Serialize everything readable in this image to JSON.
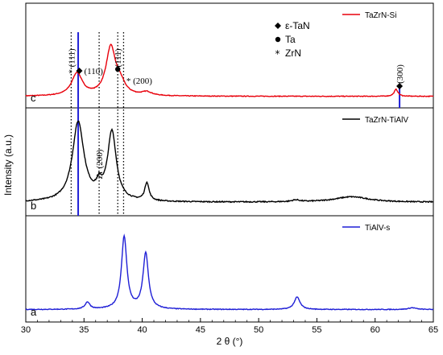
{
  "chart_data": {
    "type": "line",
    "xlabel": "2 θ (°)",
    "ylabel": "Intensity (a.u.)",
    "xlim": [
      30,
      65
    ],
    "xticks": [
      30,
      35,
      40,
      45,
      50,
      55,
      60,
      65
    ],
    "panels": [
      {
        "tag": "c",
        "series": [
          {
            "name": "TaZrN-Si",
            "color": "#e8000b",
            "baseline": 0.04,
            "noise": 0.008,
            "peaks": [
              {
                "x": 34.4,
                "h": 0.26,
                "w": 0.55
              },
              {
                "x": 37.3,
                "h": 0.55,
                "w": 0.5
              },
              {
                "x": 38.1,
                "h": 0.12,
                "w": 0.5
              },
              {
                "x": 40.4,
                "h": 0.04,
                "w": 0.5
              },
              {
                "x": 61.8,
                "h": 0.08,
                "w": 0.2
              }
            ]
          }
        ]
      },
      {
        "tag": "b",
        "series": [
          {
            "name": "TaZrN-TiAlV",
            "color": "#000000",
            "baseline": 0.06,
            "noise": 0.012,
            "peaks": [
              {
                "x": 34.5,
                "h": 0.88,
                "w": 0.6
              },
              {
                "x": 36.3,
                "h": 0.12,
                "w": 0.3
              },
              {
                "x": 37.4,
                "h": 0.76,
                "w": 0.45
              },
              {
                "x": 40.4,
                "h": 0.2,
                "w": 0.22
              },
              {
                "x": 58.0,
                "h": 0.06,
                "w": 1.8
              },
              {
                "x": 53.2,
                "h": 0.02,
                "w": 0.4
              }
            ]
          }
        ]
      },
      {
        "tag": "a",
        "series": [
          {
            "name": "TiAlV-s",
            "color": "#1f1fd6",
            "baseline": 0.05,
            "noise": 0.008,
            "peaks": [
              {
                "x": 35.3,
                "h": 0.08,
                "w": 0.25
              },
              {
                "x": 38.45,
                "h": 0.82,
                "w": 0.28
              },
              {
                "x": 40.3,
                "h": 0.63,
                "w": 0.28
              },
              {
                "x": 53.3,
                "h": 0.14,
                "w": 0.3
              },
              {
                "x": 63.2,
                "h": 0.02,
                "w": 0.4
              }
            ]
          }
        ]
      }
    ],
    "reference_lines": [
      {
        "x": 33.9,
        "style": "dotted",
        "color": "#000000"
      },
      {
        "x": 34.5,
        "style": "solid",
        "color": "#1f1fd6"
      },
      {
        "x": 36.3,
        "style": "dotted",
        "color": "#000000"
      },
      {
        "x": 37.9,
        "style": "dotted",
        "color": "#000000"
      },
      {
        "x": 38.4,
        "style": "dotted",
        "color": "#000000"
      },
      {
        "x": 62.1,
        "style": "solid",
        "color": "#1f1fd6",
        "panel": "c"
      }
    ],
    "phase_legend": [
      {
        "marker": "diamond",
        "label": "ε-TaN"
      },
      {
        "marker": "circle",
        "label": "Ta"
      },
      {
        "marker": "asterisk",
        "label": "ZrN"
      }
    ],
    "annotations": [
      {
        "text": "* (111)",
        "x": 33.9,
        "panel": "c",
        "rotate": true
      },
      {
        "text": "(110)",
        "x": 35.0,
        "panel": "c",
        "marker": "diamond"
      },
      {
        "text": "(111)",
        "x": 37.9,
        "panel": "c",
        "rotate": true,
        "marker": "circle"
      },
      {
        "text": "* (200)",
        "x": 38.5,
        "panel": "c"
      },
      {
        "text": "(300)",
        "x": 62.1,
        "panel": "c",
        "rotate": true,
        "marker": "diamond"
      },
      {
        "text": "Zr (200)",
        "x": 36.3,
        "panel": "b",
        "rotate": true
      }
    ]
  }
}
